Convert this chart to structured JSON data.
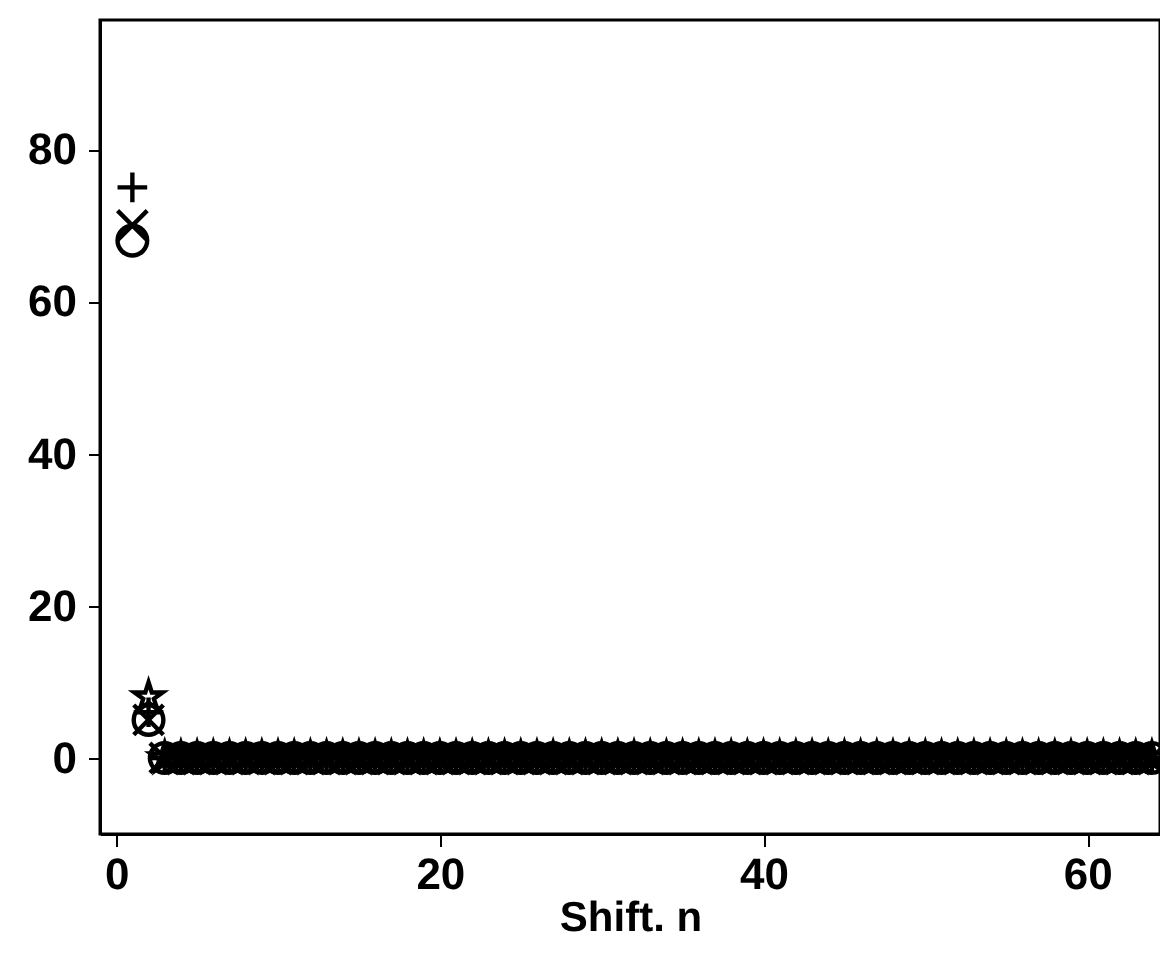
{
  "chart_data": {
    "type": "scatter",
    "xlabel": "Shift. n",
    "xlim": [
      -1,
      64.5
    ],
    "ylim": [
      -10,
      97
    ],
    "xticks": [
      0,
      20,
      40,
      60
    ],
    "yticks": [
      0,
      20,
      40,
      60,
      80
    ],
    "grid": false,
    "x": [
      1,
      2,
      3,
      4,
      5,
      6,
      7,
      8,
      9,
      10,
      11,
      12,
      13,
      14,
      15,
      16,
      17,
      18,
      19,
      20,
      21,
      22,
      23,
      24,
      25,
      26,
      27,
      28,
      29,
      30,
      31,
      32,
      33,
      34,
      35,
      36,
      37,
      38,
      39,
      40,
      41,
      42,
      43,
      44,
      45,
      46,
      47,
      48,
      49,
      50,
      51,
      52,
      53,
      54,
      55,
      56,
      57,
      58,
      59,
      60,
      61,
      62,
      63,
      64
    ],
    "series": [
      {
        "color": "#000000",
        "marker": "circle",
        "values": [
          68,
          5,
          0,
          0,
          0,
          0,
          0,
          0,
          0,
          0,
          0,
          0,
          0,
          0,
          0,
          0,
          0,
          0,
          0,
          0,
          0,
          0,
          0,
          0,
          0,
          0,
          0,
          0,
          0,
          0,
          0,
          0,
          0,
          0,
          0,
          0,
          0,
          0,
          0,
          0,
          0,
          0,
          0,
          0,
          0,
          0,
          0,
          0,
          0,
          0,
          0,
          0,
          0,
          0,
          0,
          0,
          0,
          0,
          0,
          0,
          0,
          0,
          0,
          0
        ]
      },
      {
        "color": "#000000",
        "marker": "x",
        "values": [
          70,
          5,
          0,
          0,
          0,
          0,
          0,
          0,
          0,
          0,
          0,
          0,
          0,
          0,
          0,
          0,
          0,
          0,
          0,
          0,
          0,
          0,
          0,
          0,
          0,
          0,
          0,
          0,
          0,
          0,
          0,
          0,
          0,
          0,
          0,
          0,
          0,
          0,
          0,
          0,
          0,
          0,
          0,
          0,
          0,
          0,
          0,
          0,
          0,
          0,
          0,
          0,
          0,
          0,
          0,
          0,
          0,
          0,
          0,
          0,
          0,
          0,
          0,
          0
        ]
      },
      {
        "color": "#000000",
        "marker": "cross",
        "values": [
          75,
          6,
          0,
          0,
          0,
          0,
          0,
          0,
          0,
          0,
          0,
          0,
          0,
          0,
          0,
          0,
          0,
          0,
          0,
          0,
          0,
          0,
          0,
          0,
          0,
          0,
          0,
          0,
          0,
          0,
          0,
          0,
          0,
          0,
          0,
          0,
          0,
          0,
          0,
          0,
          0,
          0,
          0,
          0,
          0,
          0,
          0,
          0,
          0,
          0,
          0,
          0,
          0,
          0,
          0,
          0,
          0,
          0,
          0,
          0,
          0,
          0,
          0,
          0
        ]
      },
      {
        "color": "#000000",
        "marker": "star",
        "values": [
          null,
          8,
          0,
          0,
          0,
          0,
          0,
          0,
          0,
          0,
          0,
          0,
          0,
          0,
          0,
          0,
          0,
          0,
          0,
          0,
          0,
          0,
          0,
          0,
          0,
          0,
          0,
          0,
          0,
          0,
          0,
          0,
          0,
          0,
          0,
          0,
          0,
          0,
          0,
          0,
          0,
          0,
          0,
          0,
          0,
          0,
          0,
          0,
          0,
          0,
          0,
          0,
          0,
          0,
          0,
          0,
          0,
          0,
          0,
          0,
          0,
          0,
          0,
          0
        ]
      }
    ]
  }
}
